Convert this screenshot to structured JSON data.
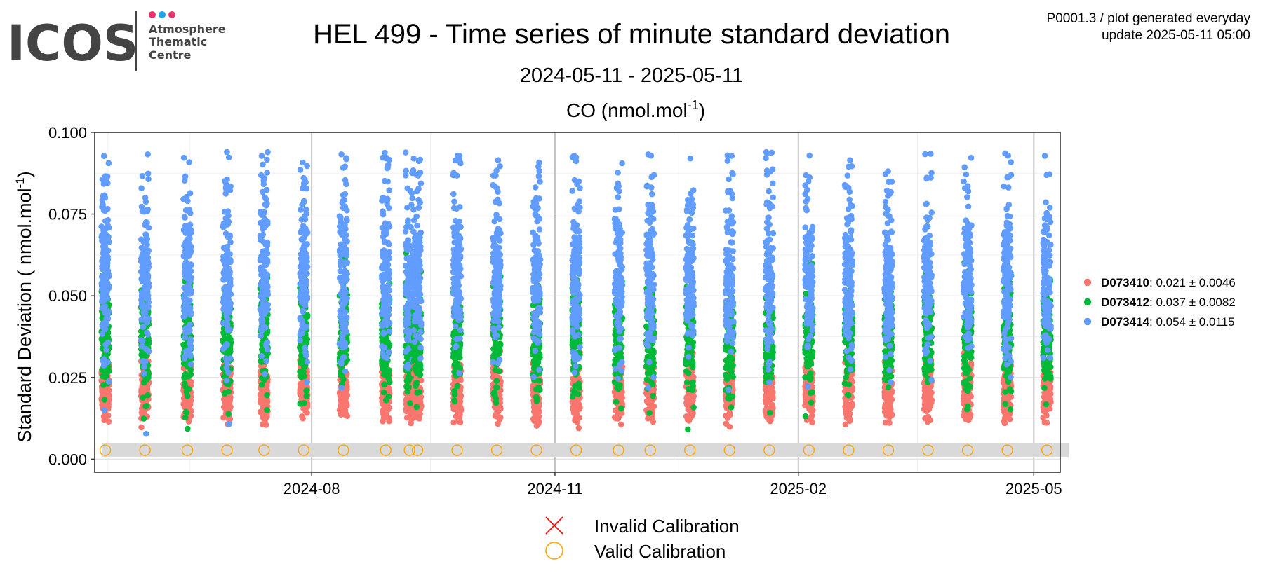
{
  "logo": {
    "word": "ICOS",
    "line1": "Atmosphere",
    "line2": "Thematic",
    "line3": "Centre",
    "dot_colors": [
      "#e8336d",
      "#1ea1e6",
      "#e8336d"
    ]
  },
  "header": {
    "title": "HEL 499 - Time series of minute standard deviation",
    "date_range": "2024-05-11 - 2025-05-11",
    "gas": "CO",
    "unit_prefix": "(nmol.mol",
    "unit_exp": "-1",
    "unit_suffix": ")",
    "info_line1": "P0001.3 / plot generated everyday",
    "info_line2": "update  2025-05-11 05:00"
  },
  "chart_data": {
    "type": "scatter",
    "title": "HEL 499 - Time series of minute standard deviation",
    "subtitle": "2024-05-11 - 2025-05-11",
    "panel_title": "CO (nmol.mol-1)",
    "xlabel": "",
    "ylabel": "Standard Deviation ( nmol.mol-1)",
    "ylabel_prefix": "Standard Deviation ( nmol.mol",
    "ylabel_exp": "-1",
    "ylabel_suffix": ")",
    "xlim": [
      "2024-05-11",
      "2025-05-11"
    ],
    "ylim": [
      -0.004,
      0.1
    ]
  },
  "axis": {
    "y_ticks": [
      {
        "v": 0.0,
        "label": "0.000"
      },
      {
        "v": 0.025,
        "label": "0.025"
      },
      {
        "v": 0.05,
        "label": "0.050"
      },
      {
        "v": 0.075,
        "label": "0.075"
      },
      {
        "v": 0.1,
        "label": "0.100"
      }
    ],
    "x_ticks": [
      {
        "date": "2024-08-01",
        "label": "2024-08"
      },
      {
        "date": "2024-11-01",
        "label": "2024-11"
      },
      {
        "date": "2025-02-01",
        "label": "2025-02"
      },
      {
        "date": "2025-05-01",
        "label": "2025-05"
      }
    ],
    "x_minor": [
      "2024-06-16",
      "2024-09-15",
      "2024-12-16",
      "2025-03-18"
    ],
    "x_minor_left": "2024-05-16"
  },
  "calibrations": [
    "2024-05-15",
    "2024-05-30",
    "2024-06-15",
    "2024-06-30",
    "2024-07-14",
    "2024-07-29",
    "2024-08-13",
    "2024-08-29",
    "2024-09-07",
    "2024-09-10",
    "2024-09-25",
    "2024-10-10",
    "2024-10-25",
    "2024-11-09",
    "2024-11-25",
    "2024-12-07",
    "2024-12-22",
    "2025-01-06",
    "2025-01-21",
    "2025-02-05",
    "2025-02-20",
    "2025-03-07",
    "2025-03-22",
    "2025-04-06",
    "2025-04-21",
    "2025-05-06"
  ],
  "calibration_band": {
    "y_min": 0.0005,
    "y_max": 0.005
  },
  "series": [
    {
      "name": "D073410",
      "stat": ": 0.021 ± 0.0046",
      "color": "#F8766D",
      "mean": 0.021,
      "sd": 0.0046
    },
    {
      "name": "D073412",
      "stat": ": 0.037 ± 0.0082",
      "color": "#00BA38",
      "mean": 0.037,
      "sd": 0.0082
    },
    {
      "name": "D073414",
      "stat": ": 0.054 ± 0.0115",
      "color": "#619CFF",
      "mean": 0.054,
      "sd": 0.0115
    }
  ],
  "legend_bottom": {
    "invalid": "Invalid Calibration",
    "valid": "Valid Calibration",
    "invalid_color": "#ff0000",
    "valid_color": "#ffa500"
  }
}
